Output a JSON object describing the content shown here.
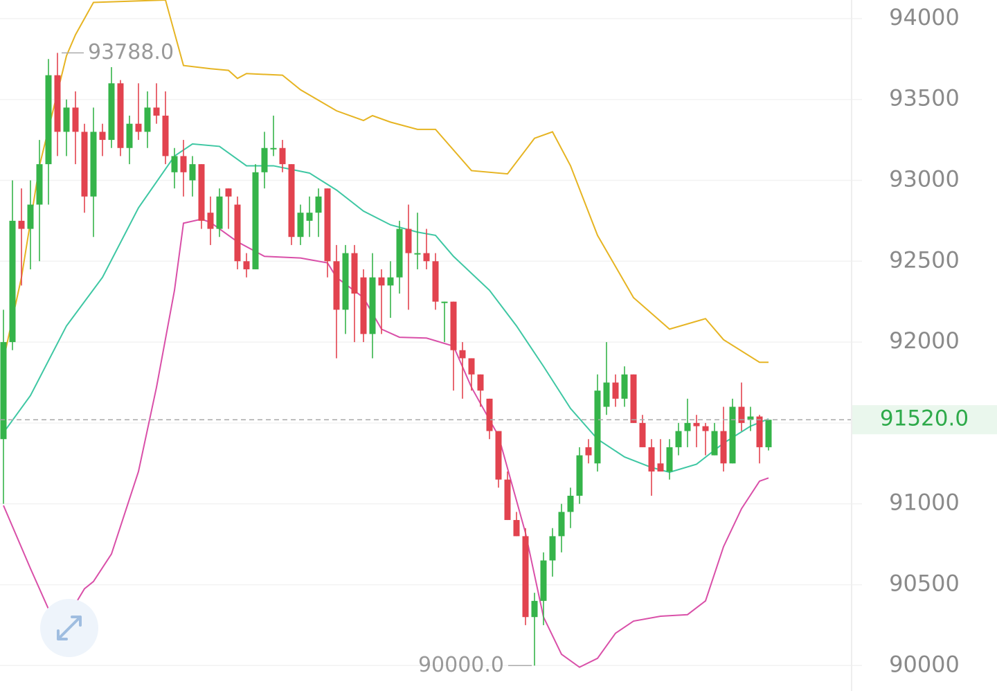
{
  "chart_data": {
    "type": "candlestick",
    "up_color": "#35b44a",
    "down_color": "#e2434f",
    "ylim": [
      89860,
      94115
    ],
    "yticks": [
      90000,
      90500,
      91000,
      91500,
      92000,
      92500,
      93000,
      93500,
      94000
    ],
    "grid": true,
    "open": [
      91400,
      92000,
      92750,
      92700,
      92850,
      93100,
      93650,
      93300,
      93450,
      93300,
      92900,
      93300,
      93250,
      93600,
      93200,
      93350,
      93300,
      93450,
      93400,
      93050,
      93150,
      93000,
      93100,
      92800,
      92700,
      92950,
      92850,
      92500,
      92450,
      93050,
      93200,
      93200,
      93100,
      92650,
      92750,
      92800,
      92950,
      92500,
      92200,
      92550,
      92400,
      92050,
      92400,
      92350,
      92400,
      92700,
      92550,
      92550,
      92500,
      92250,
      92250,
      91950,
      91900,
      91800,
      91650,
      91450,
      91150,
      90900,
      90800,
      90300,
      90400,
      90650,
      90800,
      90950,
      91050,
      91350,
      91250,
      91600,
      91750,
      91650,
      91800,
      91500,
      91350,
      91250,
      91200,
      91350,
      91450,
      91500,
      91480,
      91300,
      91450,
      91250,
      91600,
      91520,
      91540,
      91350
    ],
    "high": [
      92200,
      93000,
      92950,
      93000,
      93250,
      93750,
      93788,
      93500,
      93550,
      93350,
      93450,
      93350,
      93700,
      93620,
      93400,
      93600,
      93550,
      93600,
      93550,
      93200,
      93250,
      93150,
      93100,
      92900,
      92950,
      92950,
      92900,
      92550,
      93100,
      93300,
      93400,
      93250,
      93100,
      92850,
      92900,
      92950,
      92950,
      92600,
      92600,
      92600,
      92450,
      92550,
      92450,
      92500,
      92750,
      92850,
      92800,
      92700,
      92550,
      92250,
      92250,
      92000,
      91900,
      91800,
      91650,
      91450,
      91200,
      90950,
      90850,
      90450,
      90700,
      90850,
      91000,
      91100,
      91350,
      91400,
      91800,
      92000,
      91800,
      91850,
      91800,
      91550,
      91400,
      91400,
      91400,
      91500,
      91650,
      91550,
      91500,
      91500,
      91600,
      91650,
      91750,
      91600,
      91550,
      91520
    ],
    "low": [
      91000,
      91950,
      92350,
      92450,
      92500,
      92850,
      93150,
      93150,
      93100,
      92800,
      92650,
      93150,
      93200,
      93150,
      93100,
      93250,
      93200,
      93350,
      93100,
      92950,
      92900,
      92900,
      92700,
      92600,
      92650,
      92700,
      92450,
      92400,
      92450,
      92950,
      93150,
      93050,
      92600,
      92600,
      92650,
      92650,
      92400,
      91900,
      92050,
      92000,
      92000,
      91900,
      92050,
      92150,
      92300,
      92200,
      92450,
      92450,
      92200,
      92000,
      91700,
      91650,
      91700,
      91600,
      91400,
      91100,
      90900,
      90800,
      90250,
      90000,
      90250,
      90550,
      90700,
      90850,
      91000,
      91250,
      91200,
      91550,
      91600,
      91600,
      91500,
      91350,
      91050,
      91200,
      91150,
      91300,
      91350,
      91350,
      91300,
      91300,
      91200,
      91250,
      91450,
      91450,
      91250,
      91330
    ],
    "close": [
      92000,
      92750,
      92700,
      92850,
      93100,
      93650,
      93300,
      93450,
      93300,
      92900,
      93300,
      93250,
      93600,
      93200,
      93350,
      93300,
      93450,
      93400,
      93150,
      93150,
      93050,
      93100,
      92750,
      92700,
      92900,
      92900,
      92500,
      92450,
      93050,
      93200,
      93200,
      93100,
      92650,
      92800,
      92800,
      92900,
      92500,
      92200,
      92550,
      92300,
      92050,
      92400,
      92350,
      92400,
      92700,
      92550,
      92550,
      92500,
      92250,
      92250,
      91950,
      91900,
      91800,
      91700,
      91450,
      91150,
      90900,
      90800,
      90300,
      90400,
      90650,
      90800,
      90950,
      91050,
      91300,
      91300,
      91700,
      91750,
      91650,
      91800,
      91500,
      91350,
      91200,
      91200,
      91350,
      91450,
      91500,
      91480,
      91450,
      91450,
      91250,
      91600,
      91500,
      91540,
      91350,
      91520
    ],
    "lines": [
      {
        "color": "#e6b422",
        "x": [
          0,
          2,
          4,
          7,
          8,
          10,
          18,
          20,
          23,
          25,
          26,
          27,
          31,
          33,
          37,
          40,
          41,
          43,
          46,
          48,
          52,
          56,
          59,
          61,
          63,
          66,
          70,
          74,
          78,
          80,
          84,
          85
        ],
        "values": [
          91890,
          92400,
          93090,
          93770,
          93900,
          94100,
          94115,
          93710,
          93690,
          93680,
          93630,
          93660,
          93650,
          93560,
          93430,
          93370,
          93400,
          93360,
          93315,
          93315,
          93060,
          93040,
          93260,
          93300,
          93090,
          92660,
          92275,
          92080,
          92145,
          92015,
          91875,
          91875
        ]
      },
      {
        "color": "#3ec7a3",
        "x": [
          0,
          3,
          7,
          11,
          15,
          19,
          21,
          24,
          27,
          30,
          34,
          37,
          40,
          43,
          46,
          48,
          50,
          54,
          57,
          60,
          63,
          66,
          69,
          72,
          74,
          77,
          80,
          83,
          85
        ],
        "values": [
          91440,
          91670,
          92100,
          92400,
          92830,
          93150,
          93225,
          93210,
          93090,
          93090,
          93045,
          92940,
          92810,
          92725,
          92680,
          92660,
          92530,
          92320,
          92100,
          91850,
          91590,
          91400,
          91290,
          91225,
          91195,
          91245,
          91375,
          91480,
          91525
        ]
      },
      {
        "color": "#d94fa8",
        "x": [
          0,
          3,
          5,
          7,
          9,
          10,
          12,
          15,
          17,
          19,
          20,
          22,
          23,
          26,
          29,
          33,
          36,
          37,
          40,
          42,
          44,
          47,
          50,
          52,
          55,
          58,
          60,
          62,
          64,
          66,
          68,
          70,
          73,
          76,
          78,
          80,
          82,
          84,
          85
        ],
        "values": [
          90990,
          90600,
          90350,
          90290,
          90475,
          90520,
          90690,
          91200,
          91720,
          92320,
          92735,
          92760,
          92740,
          92620,
          92530,
          92520,
          92490,
          92400,
          92275,
          92080,
          92030,
          92025,
          91975,
          91720,
          91420,
          90820,
          90300,
          90070,
          89990,
          90045,
          90200,
          90275,
          90305,
          90315,
          90400,
          90735,
          90970,
          91140,
          91160
        ]
      }
    ],
    "annotations": [
      {
        "value": 93788,
        "label": "93788.0",
        "field": "high"
      },
      {
        "value": 90000,
        "label": "90000.0",
        "field": "low"
      }
    ],
    "last_price": {
      "value": 91520,
      "label": "91520.0",
      "color": "#2eaa4a"
    }
  }
}
